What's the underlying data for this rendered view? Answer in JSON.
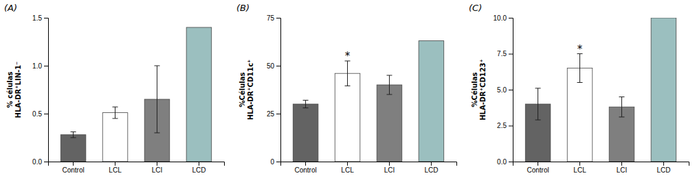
{
  "chart_data": [
    {
      "type": "bar",
      "title": "(A)",
      "categories": [
        "Control",
        "LCL",
        "LCI",
        "LCD"
      ],
      "values": [
        0.28,
        0.51,
        0.65,
        1.4
      ],
      "errors": [
        0.03,
        0.06,
        0.35,
        0.0
      ],
      "colors": [
        "#636363",
        "#ffffff",
        "#7f7f7f",
        "#9bbfbf"
      ],
      "ylabel": "% células\nHLA-DR⁺LIN-1⁻",
      "ylim": [
        0,
        1.5
      ],
      "yticks": [
        {
          "value": 0,
          "label": "0.0"
        },
        0.5,
        {
          "value": 1,
          "label": "1.0"
        },
        1.5
      ],
      "grid": false
    },
    {
      "type": "bar",
      "title": "(B)",
      "categories": [
        "Control",
        "LCL",
        "LCI",
        "LCD"
      ],
      "values": [
        30.0,
        46.0,
        40.0,
        63.0
      ],
      "errors": [
        2.0,
        6.5,
        5.0,
        0.0
      ],
      "colors": [
        "#636363",
        "#ffffff",
        "#7f7f7f",
        "#9bbfbf"
      ],
      "ylabel": "%Células\nHLA-DR⁺CD11c⁺",
      "ylim": [
        0,
        75
      ],
      "yticks": [
        0,
        25,
        50,
        75
      ],
      "annotations": [
        {
          "text": "*",
          "category": "LCL"
        }
      ],
      "grid": false
    },
    {
      "type": "bar",
      "title": "(C)",
      "categories": [
        "Control",
        "LCL",
        "LCI",
        "LCD"
      ],
      "values": [
        4.0,
        6.5,
        3.8,
        10.0
      ],
      "errors": [
        1.1,
        1.0,
        0.7,
        0.0
      ],
      "colors": [
        "#636363",
        "#ffffff",
        "#7f7f7f",
        "#9bbfbf"
      ],
      "ylabel": "%Células\nHLA-DR⁺CD123⁺",
      "ylim": [
        0,
        10.0
      ],
      "yticks": [
        {
          "value": 0,
          "label": "0.0"
        },
        2.5,
        {
          "value": 5,
          "label": "5.0"
        },
        7.5,
        {
          "value": 10,
          "label": "10.0"
        }
      ],
      "annotations": [
        {
          "text": "*",
          "category": "LCL"
        }
      ],
      "grid": false
    }
  ]
}
